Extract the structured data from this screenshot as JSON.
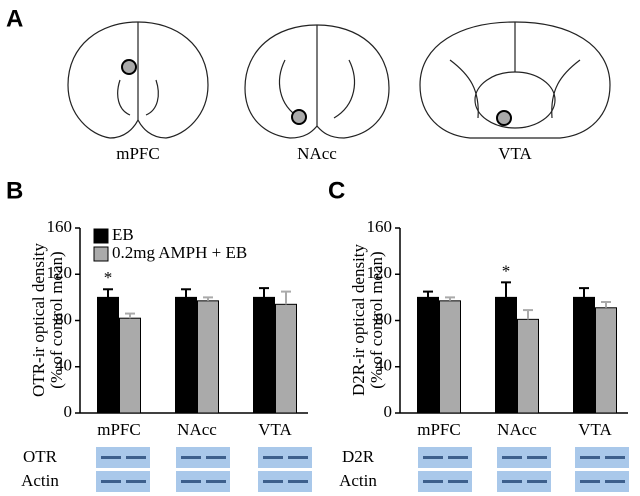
{
  "panel_a": {
    "label": "A",
    "regions": [
      "mPFC",
      "NAcc",
      "VTA"
    ]
  },
  "chart_data": [
    {
      "type": "bar",
      "panel_label": "B",
      "legend": true,
      "y_label": [
        "OTR-ir optical density",
        "(% of control mean)"
      ],
      "categories": [
        "mPFC",
        "NAcc",
        "VTA"
      ],
      "series": [
        {
          "name": "EB",
          "color": "#000000",
          "values": [
            100,
            100,
            100
          ],
          "errors": [
            7,
            7,
            8
          ]
        },
        {
          "name": "0.2mg AMPH + EB",
          "color": "#aaaaaa",
          "values": [
            82,
            97,
            94
          ],
          "errors": [
            4,
            3,
            11
          ]
        }
      ],
      "ylim": [
        0,
        160
      ],
      "yticks": [
        0,
        40,
        80,
        120,
        160
      ],
      "annotations": [
        {
          "text": "*",
          "category": 0,
          "series": 0
        }
      ],
      "blot_labels": [
        "OTR",
        "Actin"
      ]
    },
    {
      "type": "bar",
      "panel_label": "C",
      "legend": false,
      "y_label": [
        "D2R-ir optical density",
        "(% of control mean)"
      ],
      "categories": [
        "mPFC",
        "NAcc",
        "VTA"
      ],
      "series": [
        {
          "color": "#000000",
          "values": [
            100,
            100,
            100
          ],
          "errors": [
            5,
            13,
            8
          ]
        },
        {
          "color": "#aaaaaa",
          "values": [
            97,
            81,
            91
          ],
          "errors": [
            3,
            8,
            5
          ]
        }
      ],
      "ylim": [
        0,
        160
      ],
      "yticks": [
        0,
        40,
        80,
        120,
        160
      ],
      "annotations": [
        {
          "text": "*",
          "category": 1,
          "series": 0
        }
      ],
      "blot_labels": [
        "D2R",
        "Actin"
      ]
    }
  ]
}
